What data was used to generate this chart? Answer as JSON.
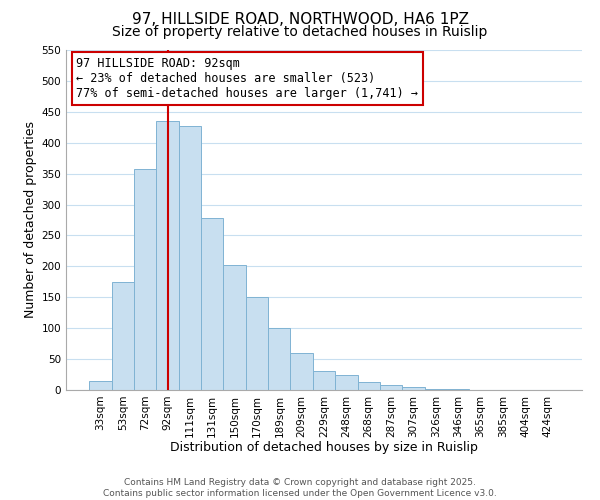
{
  "title": "97, HILLSIDE ROAD, NORTHWOOD, HA6 1PZ",
  "subtitle": "Size of property relative to detached houses in Ruislip",
  "xlabel": "Distribution of detached houses by size in Ruislip",
  "ylabel": "Number of detached properties",
  "bar_color": "#c8dff0",
  "bar_edge_color": "#7fb3d3",
  "background_color": "#ffffff",
  "grid_color": "#c8dff0",
  "categories": [
    "33sqm",
    "53sqm",
    "72sqm",
    "92sqm",
    "111sqm",
    "131sqm",
    "150sqm",
    "170sqm",
    "189sqm",
    "209sqm",
    "229sqm",
    "248sqm",
    "268sqm",
    "287sqm",
    "307sqm",
    "326sqm",
    "346sqm",
    "365sqm",
    "385sqm",
    "404sqm",
    "424sqm"
  ],
  "values": [
    15,
    175,
    357,
    435,
    427,
    278,
    202,
    151,
    100,
    60,
    30,
    25,
    13,
    8,
    5,
    2,
    1,
    0,
    0,
    0,
    0
  ],
  "ylim": [
    0,
    550
  ],
  "yticks": [
    0,
    50,
    100,
    150,
    200,
    250,
    300,
    350,
    400,
    450,
    500,
    550
  ],
  "vline_x_index": 3,
  "vline_color": "#cc0000",
  "annotation_title": "97 HILLSIDE ROAD: 92sqm",
  "annotation_line1": "← 23% of detached houses are smaller (523)",
  "annotation_line2": "77% of semi-detached houses are larger (1,741) →",
  "annotation_box_edge": "#cc0000",
  "footer_line1": "Contains HM Land Registry data © Crown copyright and database right 2025.",
  "footer_line2": "Contains public sector information licensed under the Open Government Licence v3.0.",
  "title_fontsize": 11,
  "subtitle_fontsize": 10,
  "xlabel_fontsize": 9,
  "ylabel_fontsize": 9,
  "tick_fontsize": 7.5,
  "annotation_fontsize": 8.5,
  "footer_fontsize": 6.5
}
